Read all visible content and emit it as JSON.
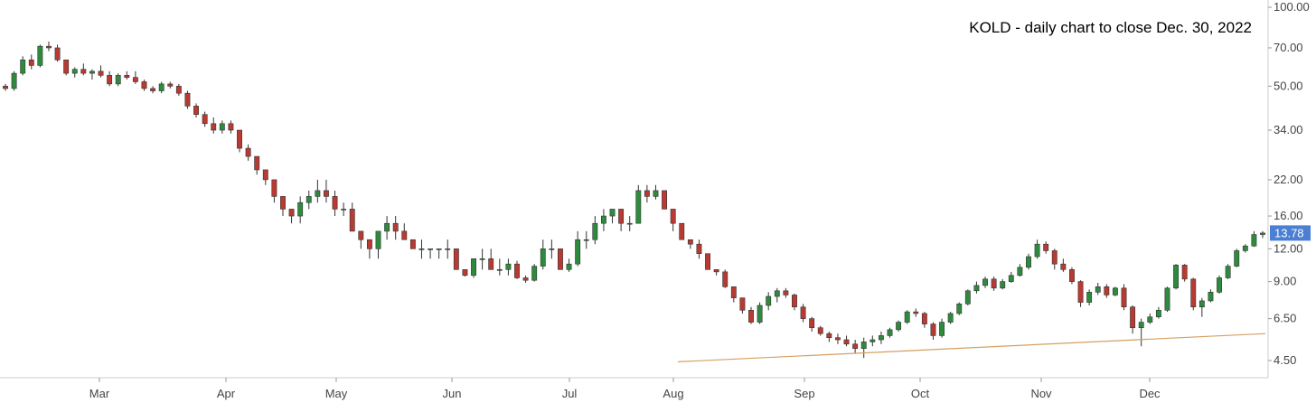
{
  "chart_data": {
    "type": "candlestick",
    "title": "KOLD - daily chart to close Dec. 30, 2022",
    "y_scale": "log",
    "ylim": [
      4.0,
      110.0
    ],
    "y_ticks": [
      4.5,
      6.5,
      9.0,
      12.0,
      16.0,
      22.0,
      34.0,
      50.0,
      70.0,
      100.0
    ],
    "y_tick_labels": [
      "4.50",
      "6.50",
      "9.00",
      "12.00",
      "16.00",
      "22.00",
      "34.00",
      "50.00",
      "70.00",
      "100.00"
    ],
    "x_labels": [
      "Mar",
      "Apr",
      "May",
      "Jun",
      "Jul",
      "Aug",
      "Sep",
      "Oct",
      "Nov",
      "Dec"
    ],
    "last_price": 13.78,
    "last_price_label": "13.78",
    "grid": false,
    "colors": {
      "up": "#2e8b3e",
      "down": "#b83a32",
      "trendline": "#d4a060",
      "price_tag": "#4a7fd4",
      "axis": "#cccccc"
    },
    "trendline": {
      "start_month": "Aug",
      "start_value": 4.45,
      "end_value": 5.7
    },
    "series": [
      {
        "name": "KOLD",
        "ohlc": [
          [
            50,
            51,
            48,
            49
          ],
          [
            49,
            57,
            48,
            56
          ],
          [
            56,
            65,
            55,
            63
          ],
          [
            63,
            66,
            58,
            60
          ],
          [
            60,
            72,
            59,
            71
          ],
          [
            71,
            74,
            68,
            70
          ],
          [
            70,
            72,
            62,
            63
          ],
          [
            63,
            63,
            55,
            56
          ],
          [
            56,
            59,
            54,
            58
          ],
          [
            58,
            61,
            55,
            56
          ],
          [
            56,
            58,
            53,
            57
          ],
          [
            57,
            60,
            54,
            55
          ],
          [
            55,
            57,
            50,
            51
          ],
          [
            51,
            56,
            50,
            55
          ],
          [
            55,
            57,
            53,
            54
          ],
          [
            54,
            57,
            51,
            52
          ],
          [
            52,
            53,
            48,
            49
          ],
          [
            49,
            50,
            47,
            48
          ],
          [
            48,
            52,
            47,
            51
          ],
          [
            51,
            52,
            49,
            50
          ],
          [
            50,
            51,
            46,
            47
          ],
          [
            47,
            48,
            41,
            42
          ],
          [
            42,
            43,
            38,
            39
          ],
          [
            39,
            40,
            35,
            36
          ],
          [
            36,
            38,
            33,
            34
          ],
          [
            34,
            37,
            33,
            36
          ],
          [
            36,
            37,
            33,
            34
          ],
          [
            34,
            34,
            28,
            29
          ],
          [
            29,
            30,
            26,
            27
          ],
          [
            27,
            27,
            23,
            24
          ],
          [
            24,
            24,
            21,
            22
          ],
          [
            22,
            22,
            18,
            19
          ],
          [
            19,
            19,
            16,
            17
          ],
          [
            17,
            17,
            15,
            16
          ],
          [
            16,
            19,
            15,
            18
          ],
          [
            18,
            20,
            17,
            19
          ],
          [
            19,
            22,
            18,
            20
          ],
          [
            20,
            22,
            18,
            19
          ],
          [
            19,
            20,
            16,
            17
          ],
          [
            17,
            18,
            16,
            17
          ],
          [
            17,
            18,
            14,
            14
          ],
          [
            14,
            14,
            12,
            13
          ],
          [
            13,
            13,
            11,
            12
          ],
          [
            12,
            14,
            11,
            14
          ],
          [
            14,
            16,
            13,
            15
          ],
          [
            15,
            16,
            13,
            14
          ],
          [
            14,
            15,
            13,
            13
          ],
          [
            13,
            13,
            12,
            12
          ],
          [
            12,
            13,
            11,
            12
          ],
          [
            12,
            12,
            11,
            12
          ],
          [
            12,
            12,
            11,
            12
          ],
          [
            12,
            13,
            11,
            12
          ],
          [
            12,
            12,
            10,
            10
          ],
          [
            10,
            10,
            9.4,
            9.5
          ],
          [
            9.5,
            11,
            9.3,
            11
          ],
          [
            11,
            12,
            10,
            11
          ],
          [
            11,
            12,
            10,
            10
          ],
          [
            10,
            11,
            9.5,
            10
          ],
          [
            10,
            11,
            9.5,
            10.5
          ],
          [
            10.5,
            10.8,
            9.2,
            9.3
          ],
          [
            9.3,
            9.5,
            8.9,
            9.1
          ],
          [
            9.1,
            10.5,
            9,
            10.3
          ],
          [
            10.3,
            13,
            10,
            12
          ],
          [
            12,
            13,
            11,
            12
          ],
          [
            12,
            12,
            10,
            10
          ],
          [
            10,
            11,
            9.8,
            10.5
          ],
          [
            10.5,
            14,
            10.3,
            13
          ],
          [
            13,
            14,
            12,
            13
          ],
          [
            13,
            16,
            12.5,
            15
          ],
          [
            15,
            17,
            14,
            16
          ],
          [
            16,
            17,
            15,
            17
          ],
          [
            17,
            17,
            14,
            15
          ],
          [
            15,
            16,
            14,
            15
          ],
          [
            15,
            21,
            15,
            20
          ],
          [
            20,
            21,
            18,
            19
          ],
          [
            19,
            21,
            18.5,
            20
          ],
          [
            20,
            20,
            17,
            17
          ],
          [
            17,
            17,
            14,
            15
          ],
          [
            15,
            15,
            13,
            13
          ],
          [
            13,
            13,
            12,
            12.5
          ],
          [
            12.5,
            13,
            11,
            11.5
          ],
          [
            11.5,
            11.5,
            10,
            10
          ],
          [
            10,
            10,
            9.5,
            9.8
          ],
          [
            9.8,
            10,
            8.5,
            8.6
          ],
          [
            8.6,
            8.6,
            7.5,
            7.8
          ],
          [
            7.8,
            7.8,
            6.8,
            7
          ],
          [
            7,
            7.2,
            6.2,
            6.3
          ],
          [
            6.3,
            7.5,
            6.2,
            7.3
          ],
          [
            7.3,
            8.2,
            7,
            7.9
          ],
          [
            7.9,
            8.5,
            7.5,
            8.3
          ],
          [
            8.3,
            8.5,
            7.8,
            8
          ],
          [
            8,
            8.1,
            7,
            7.2
          ],
          [
            7.2,
            7.4,
            6.3,
            6.5
          ],
          [
            6.5,
            6.6,
            5.8,
            6
          ],
          [
            6,
            6.1,
            5.6,
            5.7
          ],
          [
            5.7,
            5.8,
            5.3,
            5.5
          ],
          [
            5.5,
            5.7,
            5.2,
            5.4
          ],
          [
            5.4,
            5.6,
            5.1,
            5.2
          ],
          [
            5.2,
            5.4,
            4.8,
            5
          ],
          [
            5,
            5.5,
            4.6,
            5.3
          ],
          [
            5.3,
            5.6,
            5.1,
            5.4
          ],
          [
            5.4,
            5.8,
            5.2,
            5.6
          ],
          [
            5.6,
            6,
            5.5,
            5.9
          ],
          [
            5.9,
            6.4,
            5.8,
            6.3
          ],
          [
            6.3,
            7,
            6.2,
            6.9
          ],
          [
            6.9,
            7.1,
            6.6,
            6.8
          ],
          [
            6.8,
            6.9,
            6,
            6.2
          ],
          [
            6.2,
            6.3,
            5.4,
            5.6
          ],
          [
            5.6,
            6.5,
            5.5,
            6.3
          ],
          [
            6.3,
            6.9,
            6.2,
            6.8
          ],
          [
            6.8,
            7.5,
            6.7,
            7.4
          ],
          [
            7.4,
            8.4,
            7.3,
            8.3
          ],
          [
            8.3,
            9,
            8.1,
            8.7
          ],
          [
            8.7,
            9.4,
            8.5,
            9.2
          ],
          [
            9.2,
            9.4,
            8.3,
            8.5
          ],
          [
            8.5,
            9.2,
            8.4,
            9
          ],
          [
            9,
            9.8,
            8.9,
            9.5
          ],
          [
            9.5,
            10.5,
            9.4,
            10.2
          ],
          [
            10.2,
            11.5,
            10,
            11.2
          ],
          [
            11.2,
            13,
            11,
            12.5
          ],
          [
            12.5,
            12.8,
            11.5,
            11.8
          ],
          [
            11.8,
            12,
            10,
            10.5
          ],
          [
            10.5,
            11,
            9.8,
            10
          ],
          [
            10,
            10.2,
            8.8,
            9
          ],
          [
            9,
            9.1,
            7.2,
            7.5
          ],
          [
            7.5,
            8.4,
            7.3,
            8.2
          ],
          [
            8.2,
            8.9,
            8,
            8.6
          ],
          [
            8.6,
            8.8,
            7.8,
            8
          ],
          [
            8,
            8.6,
            7.9,
            8.5
          ],
          [
            8.5,
            8.8,
            7,
            7.2
          ],
          [
            7.2,
            7.3,
            5.7,
            6
          ],
          [
            6,
            6.5,
            5.1,
            6.3
          ],
          [
            6.3,
            6.8,
            6.2,
            6.6
          ],
          [
            6.6,
            7.2,
            6.5,
            7
          ],
          [
            7,
            8.6,
            6.9,
            8.5
          ],
          [
            8.5,
            10.5,
            8.4,
            10.4
          ],
          [
            10.4,
            10.5,
            9,
            9.2
          ],
          [
            9.2,
            9.3,
            7,
            7.2
          ],
          [
            7.2,
            7.8,
            6.6,
            7.6
          ],
          [
            7.6,
            8.4,
            7.5,
            8.2
          ],
          [
            8.2,
            9.5,
            8.1,
            9.3
          ],
          [
            9.3,
            10.5,
            9.2,
            10.3
          ],
          [
            10.3,
            12,
            10.2,
            11.8
          ],
          [
            11.8,
            12.5,
            11.6,
            12.3
          ],
          [
            12.3,
            14,
            12.2,
            13.6
          ],
          [
            13.6,
            14,
            13.2,
            13.78
          ]
        ]
      }
    ]
  }
}
